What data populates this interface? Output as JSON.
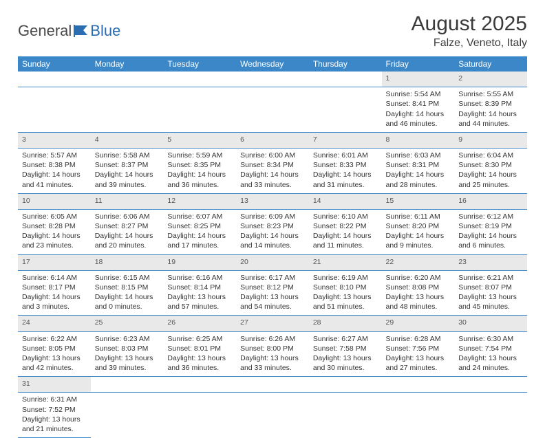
{
  "logo": {
    "part1": "General",
    "part2": "Blue"
  },
  "title": "August 2025",
  "location": "Falze, Veneto, Italy",
  "colors": {
    "header_bg": "#3c87c7",
    "header_fg": "#ffffff",
    "daynum_bg": "#e9e9e9",
    "row_divider": "#3c87c7",
    "text": "#333333",
    "logo_gray": "#4a4a4a",
    "logo_blue": "#2a6db0"
  },
  "weekdays": [
    "Sunday",
    "Monday",
    "Tuesday",
    "Wednesday",
    "Thursday",
    "Friday",
    "Saturday"
  ],
  "weeks": [
    [
      null,
      null,
      null,
      null,
      null,
      {
        "n": "1",
        "sr": "Sunrise: 5:54 AM",
        "ss": "Sunset: 8:41 PM",
        "dl": "Daylight: 14 hours and 46 minutes."
      },
      {
        "n": "2",
        "sr": "Sunrise: 5:55 AM",
        "ss": "Sunset: 8:39 PM",
        "dl": "Daylight: 14 hours and 44 minutes."
      }
    ],
    [
      {
        "n": "3",
        "sr": "Sunrise: 5:57 AM",
        "ss": "Sunset: 8:38 PM",
        "dl": "Daylight: 14 hours and 41 minutes."
      },
      {
        "n": "4",
        "sr": "Sunrise: 5:58 AM",
        "ss": "Sunset: 8:37 PM",
        "dl": "Daylight: 14 hours and 39 minutes."
      },
      {
        "n": "5",
        "sr": "Sunrise: 5:59 AM",
        "ss": "Sunset: 8:35 PM",
        "dl": "Daylight: 14 hours and 36 minutes."
      },
      {
        "n": "6",
        "sr": "Sunrise: 6:00 AM",
        "ss": "Sunset: 8:34 PM",
        "dl": "Daylight: 14 hours and 33 minutes."
      },
      {
        "n": "7",
        "sr": "Sunrise: 6:01 AM",
        "ss": "Sunset: 8:33 PM",
        "dl": "Daylight: 14 hours and 31 minutes."
      },
      {
        "n": "8",
        "sr": "Sunrise: 6:03 AM",
        "ss": "Sunset: 8:31 PM",
        "dl": "Daylight: 14 hours and 28 minutes."
      },
      {
        "n": "9",
        "sr": "Sunrise: 6:04 AM",
        "ss": "Sunset: 8:30 PM",
        "dl": "Daylight: 14 hours and 25 minutes."
      }
    ],
    [
      {
        "n": "10",
        "sr": "Sunrise: 6:05 AM",
        "ss": "Sunset: 8:28 PM",
        "dl": "Daylight: 14 hours and 23 minutes."
      },
      {
        "n": "11",
        "sr": "Sunrise: 6:06 AM",
        "ss": "Sunset: 8:27 PM",
        "dl": "Daylight: 14 hours and 20 minutes."
      },
      {
        "n": "12",
        "sr": "Sunrise: 6:07 AM",
        "ss": "Sunset: 8:25 PM",
        "dl": "Daylight: 14 hours and 17 minutes."
      },
      {
        "n": "13",
        "sr": "Sunrise: 6:09 AM",
        "ss": "Sunset: 8:23 PM",
        "dl": "Daylight: 14 hours and 14 minutes."
      },
      {
        "n": "14",
        "sr": "Sunrise: 6:10 AM",
        "ss": "Sunset: 8:22 PM",
        "dl": "Daylight: 14 hours and 11 minutes."
      },
      {
        "n": "15",
        "sr": "Sunrise: 6:11 AM",
        "ss": "Sunset: 8:20 PM",
        "dl": "Daylight: 14 hours and 9 minutes."
      },
      {
        "n": "16",
        "sr": "Sunrise: 6:12 AM",
        "ss": "Sunset: 8:19 PM",
        "dl": "Daylight: 14 hours and 6 minutes."
      }
    ],
    [
      {
        "n": "17",
        "sr": "Sunrise: 6:14 AM",
        "ss": "Sunset: 8:17 PM",
        "dl": "Daylight: 14 hours and 3 minutes."
      },
      {
        "n": "18",
        "sr": "Sunrise: 6:15 AM",
        "ss": "Sunset: 8:15 PM",
        "dl": "Daylight: 14 hours and 0 minutes."
      },
      {
        "n": "19",
        "sr": "Sunrise: 6:16 AM",
        "ss": "Sunset: 8:14 PM",
        "dl": "Daylight: 13 hours and 57 minutes."
      },
      {
        "n": "20",
        "sr": "Sunrise: 6:17 AM",
        "ss": "Sunset: 8:12 PM",
        "dl": "Daylight: 13 hours and 54 minutes."
      },
      {
        "n": "21",
        "sr": "Sunrise: 6:19 AM",
        "ss": "Sunset: 8:10 PM",
        "dl": "Daylight: 13 hours and 51 minutes."
      },
      {
        "n": "22",
        "sr": "Sunrise: 6:20 AM",
        "ss": "Sunset: 8:08 PM",
        "dl": "Daylight: 13 hours and 48 minutes."
      },
      {
        "n": "23",
        "sr": "Sunrise: 6:21 AM",
        "ss": "Sunset: 8:07 PM",
        "dl": "Daylight: 13 hours and 45 minutes."
      }
    ],
    [
      {
        "n": "24",
        "sr": "Sunrise: 6:22 AM",
        "ss": "Sunset: 8:05 PM",
        "dl": "Daylight: 13 hours and 42 minutes."
      },
      {
        "n": "25",
        "sr": "Sunrise: 6:23 AM",
        "ss": "Sunset: 8:03 PM",
        "dl": "Daylight: 13 hours and 39 minutes."
      },
      {
        "n": "26",
        "sr": "Sunrise: 6:25 AM",
        "ss": "Sunset: 8:01 PM",
        "dl": "Daylight: 13 hours and 36 minutes."
      },
      {
        "n": "27",
        "sr": "Sunrise: 6:26 AM",
        "ss": "Sunset: 8:00 PM",
        "dl": "Daylight: 13 hours and 33 minutes."
      },
      {
        "n": "28",
        "sr": "Sunrise: 6:27 AM",
        "ss": "Sunset: 7:58 PM",
        "dl": "Daylight: 13 hours and 30 minutes."
      },
      {
        "n": "29",
        "sr": "Sunrise: 6:28 AM",
        "ss": "Sunset: 7:56 PM",
        "dl": "Daylight: 13 hours and 27 minutes."
      },
      {
        "n": "30",
        "sr": "Sunrise: 6:30 AM",
        "ss": "Sunset: 7:54 PM",
        "dl": "Daylight: 13 hours and 24 minutes."
      }
    ],
    [
      {
        "n": "31",
        "sr": "Sunrise: 6:31 AM",
        "ss": "Sunset: 7:52 PM",
        "dl": "Daylight: 13 hours and 21 minutes."
      },
      null,
      null,
      null,
      null,
      null,
      null
    ]
  ]
}
